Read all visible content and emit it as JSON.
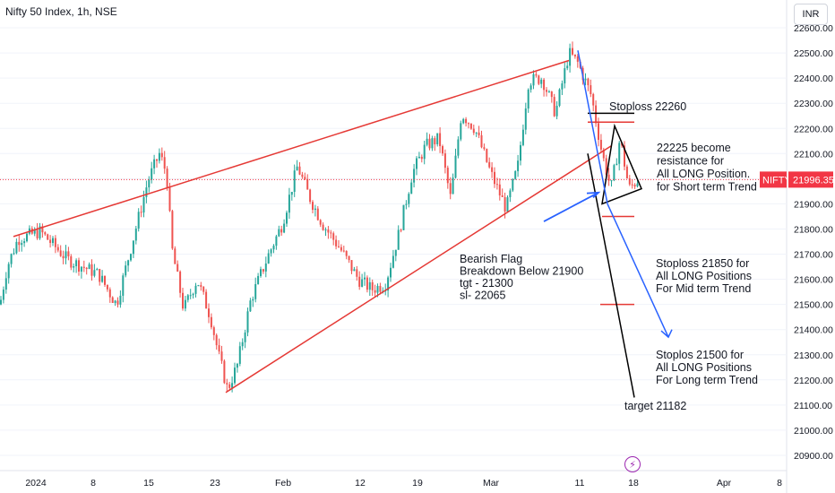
{
  "header": {
    "title": "Nifty 50 Index, 1h, NSE",
    "currency": "INR"
  },
  "chart_data": {
    "type": "candlestick",
    "symbol": "NIFTY",
    "last_price": "21996.35",
    "ylim": [
      20850,
      22650
    ],
    "y_ticks": [
      "22600.00",
      "22500.00",
      "22400.00",
      "22300.00",
      "22200.00",
      "22100.00",
      "22000.00",
      "21900.00",
      "21800.00",
      "21700.00",
      "21600.00",
      "21500.00",
      "21400.00",
      "21300.00",
      "21200.00",
      "21100.00",
      "21000.00",
      "20900.00"
    ],
    "x_ticks": [
      "2024",
      "8",
      "15",
      "23",
      "Feb",
      "12",
      "19",
      "Mar",
      "11",
      "18",
      "Apr",
      "8"
    ],
    "price_path": [
      {
        "x": 0,
        "y": 21500
      },
      {
        "x": 8,
        "y": 21650
      },
      {
        "x": 20,
        "y": 21760
      },
      {
        "x": 45,
        "y": 21790
      },
      {
        "x": 75,
        "y": 21680
      },
      {
        "x": 110,
        "y": 21620
      },
      {
        "x": 130,
        "y": 21500
      },
      {
        "x": 150,
        "y": 21780
      },
      {
        "x": 165,
        "y": 21990
      },
      {
        "x": 178,
        "y": 22100
      },
      {
        "x": 186,
        "y": 22020
      },
      {
        "x": 192,
        "y": 21720
      },
      {
        "x": 205,
        "y": 21480
      },
      {
        "x": 220,
        "y": 21600
      },
      {
        "x": 235,
        "y": 21450
      },
      {
        "x": 244,
        "y": 21300
      },
      {
        "x": 254,
        "y": 21160
      },
      {
        "x": 265,
        "y": 21260
      },
      {
        "x": 280,
        "y": 21520
      },
      {
        "x": 300,
        "y": 21700
      },
      {
        "x": 315,
        "y": 21820
      },
      {
        "x": 332,
        "y": 22050
      },
      {
        "x": 345,
        "y": 21930
      },
      {
        "x": 360,
        "y": 21820
      },
      {
        "x": 380,
        "y": 21720
      },
      {
        "x": 400,
        "y": 21600
      },
      {
        "x": 415,
        "y": 21560
      },
      {
        "x": 430,
        "y": 21580
      },
      {
        "x": 445,
        "y": 21780
      },
      {
        "x": 460,
        "y": 22020
      },
      {
        "x": 475,
        "y": 22130
      },
      {
        "x": 490,
        "y": 22160
      },
      {
        "x": 503,
        "y": 21920
      },
      {
        "x": 515,
        "y": 22260
      },
      {
        "x": 530,
        "y": 22200
      },
      {
        "x": 548,
        "y": 22020
      },
      {
        "x": 565,
        "y": 21880
      },
      {
        "x": 578,
        "y": 22050
      },
      {
        "x": 590,
        "y": 22390
      },
      {
        "x": 605,
        "y": 22400
      },
      {
        "x": 620,
        "y": 22260
      },
      {
        "x": 635,
        "y": 22500
      },
      {
        "x": 645,
        "y": 22460
      },
      {
        "x": 660,
        "y": 22330
      },
      {
        "x": 672,
        "y": 22100
      },
      {
        "x": 682,
        "y": 21960
      },
      {
        "x": 692,
        "y": 22160
      },
      {
        "x": 702,
        "y": 21960
      },
      {
        "x": 712,
        "y": 21996
      }
    ],
    "trendlines": [
      {
        "from": [
          15,
          21770
        ],
        "to": [
          635,
          22470
        ],
        "color": "#e53935"
      },
      {
        "from": [
          252,
          21150
        ],
        "to": [
          682,
          22130
        ],
        "color": "#e53935"
      }
    ],
    "levels": [
      "22260",
      "22225",
      "21850",
      "21500"
    ],
    "annotations": {
      "stoploss_top": "Stoploss 22260",
      "resistance": [
        "22225 become",
        "resistance for",
        "All LONG Position.",
        "for Short term Trend"
      ],
      "bearish_flag": [
        "Bearish Flag",
        "Breakdown Below 21900",
        "tgt - 21300",
        "sl- 22065"
      ],
      "mid_term": [
        "Stoploss 21850 for",
        "All LONG Positions",
        "For Mid term Trend"
      ],
      "long_term": [
        "Stoplos  21500 for",
        "All LONG Positions",
        "For Long term Trend"
      ],
      "target": "target 21182"
    },
    "colors": {
      "up": "#26a69a",
      "down": "#ef5350",
      "trend": "#e53935",
      "projection": "#2962ff",
      "level": "#e53935",
      "flag": "#000000",
      "price_tag": "#f23645"
    }
  }
}
